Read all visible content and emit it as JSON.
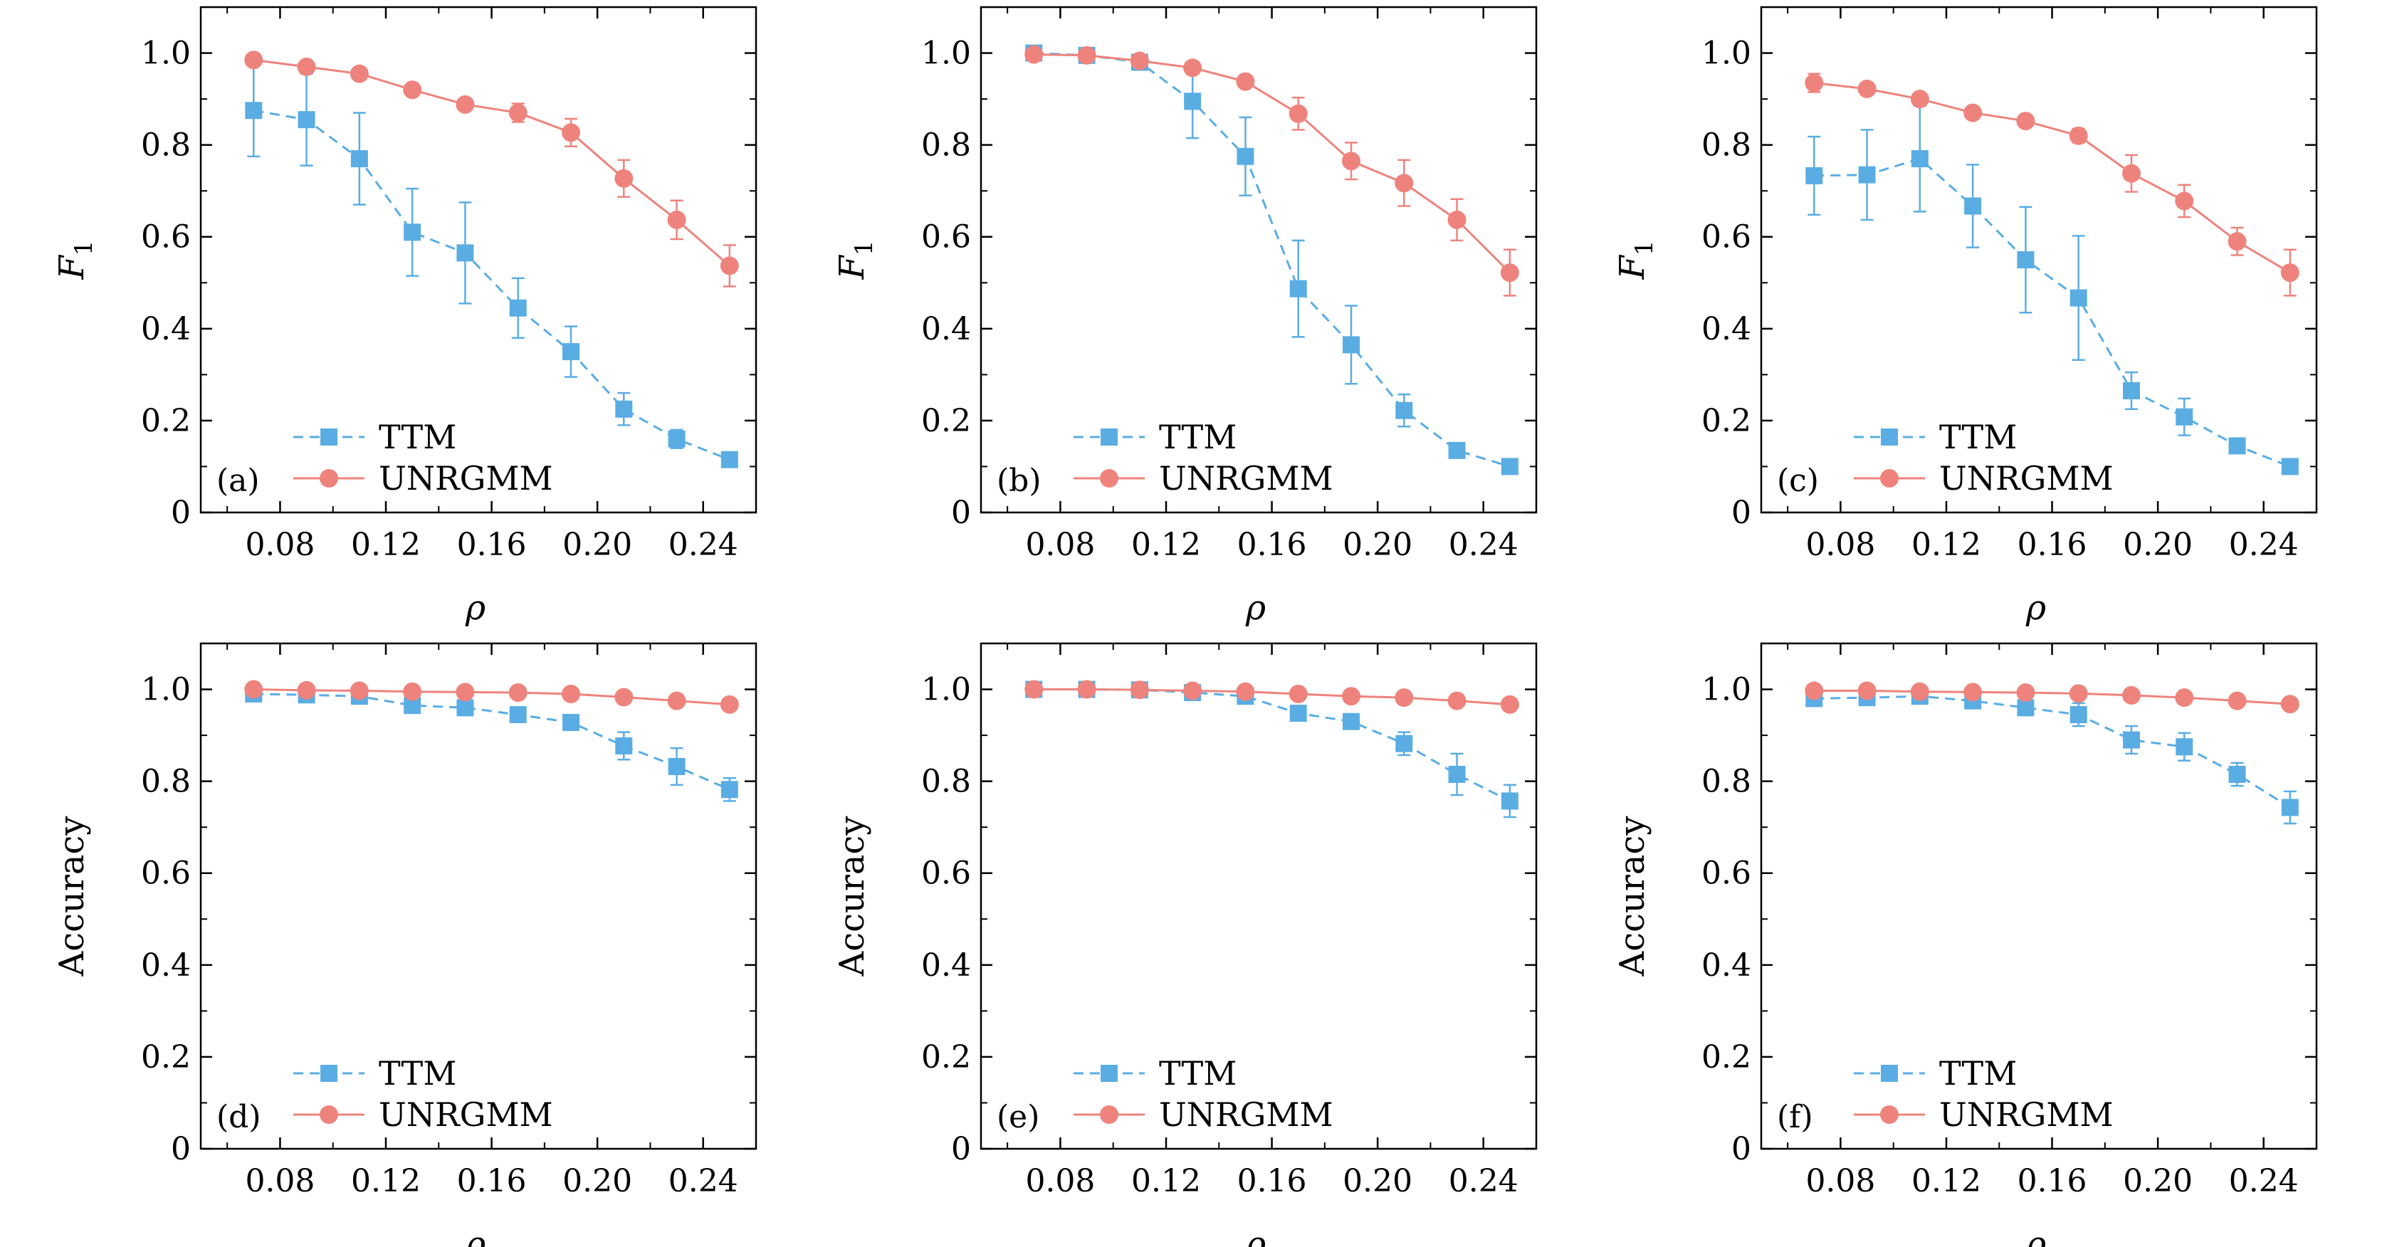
{
  "colors": {
    "ttm": "#5aade3",
    "unrgmm": "#ee837d",
    "axis": "#000000"
  },
  "chart_data": [
    {
      "type": "line",
      "panel_label": "(a)",
      "xlabel": "ρ",
      "ylabel": "F",
      "ylabel_sub": "1",
      "xlim": [
        0.05,
        0.26
      ],
      "ylim": [
        0,
        1.1
      ],
      "xticks": [
        "0.08",
        "0.12",
        "0.16",
        "0.20",
        "0.24"
      ],
      "yticks": [
        "0",
        "0.2",
        "0.4",
        "0.6",
        "0.8",
        "1.0"
      ],
      "x": [
        0.07,
        0.09,
        0.11,
        0.13,
        0.15,
        0.17,
        0.19,
        0.21,
        0.23,
        0.25
      ],
      "series": [
        {
          "name": "TTM",
          "marker": "square",
          "dashed": true,
          "values": [
            0.875,
            0.855,
            0.77,
            0.61,
            0.565,
            0.445,
            0.35,
            0.225,
            0.16,
            0.115
          ],
          "errors": [
            0.1,
            0.1,
            0.1,
            0.095,
            0.11,
            0.065,
            0.055,
            0.035,
            0.02,
            0.01
          ]
        },
        {
          "name": "UNRGMM",
          "marker": "circle",
          "dashed": false,
          "values": [
            0.985,
            0.97,
            0.955,
            0.92,
            0.888,
            0.87,
            0.827,
            0.727,
            0.637,
            0.537
          ],
          "errors": [
            0.01,
            0.01,
            0.01,
            0.01,
            0.01,
            0.02,
            0.03,
            0.04,
            0.042,
            0.045
          ]
        }
      ]
    },
    {
      "type": "line",
      "panel_label": "(b)",
      "xlabel": "ρ",
      "ylabel": "F",
      "ylabel_sub": "1",
      "xlim": [
        0.05,
        0.26
      ],
      "ylim": [
        0,
        1.1
      ],
      "xticks": [
        "0.08",
        "0.12",
        "0.16",
        "0.20",
        "0.24"
      ],
      "yticks": [
        "0",
        "0.2",
        "0.4",
        "0.6",
        "0.8",
        "1.0"
      ],
      "x": [
        0.07,
        0.09,
        0.11,
        0.13,
        0.15,
        0.17,
        0.19,
        0.21,
        0.23,
        0.25
      ],
      "series": [
        {
          "name": "TTM",
          "marker": "square",
          "dashed": true,
          "values": [
            1.0,
            0.995,
            0.98,
            0.895,
            0.775,
            0.487,
            0.365,
            0.222,
            0.135,
            0.1
          ],
          "errors": [
            0.005,
            0.005,
            0.01,
            0.08,
            0.085,
            0.105,
            0.085,
            0.035,
            0.008,
            0.008
          ]
        },
        {
          "name": "UNRGMM",
          "marker": "circle",
          "dashed": false,
          "values": [
            0.997,
            0.995,
            0.983,
            0.968,
            0.938,
            0.868,
            0.765,
            0.717,
            0.637,
            0.522
          ],
          "errors": [
            0.005,
            0.005,
            0.008,
            0.01,
            0.01,
            0.035,
            0.04,
            0.05,
            0.045,
            0.05
          ]
        }
      ]
    },
    {
      "type": "line",
      "panel_label": "(c)",
      "xlabel": "ρ",
      "ylabel": "F",
      "ylabel_sub": "1",
      "xlim": [
        0.05,
        0.26
      ],
      "ylim": [
        0,
        1.1
      ],
      "xticks": [
        "0.08",
        "0.12",
        "0.16",
        "0.20",
        "0.24"
      ],
      "yticks": [
        "0",
        "0.2",
        "0.4",
        "0.6",
        "0.8",
        "1.0"
      ],
      "x": [
        0.07,
        0.09,
        0.11,
        0.13,
        0.15,
        0.17,
        0.19,
        0.21,
        0.23,
        0.25
      ],
      "series": [
        {
          "name": "TTM",
          "marker": "square",
          "dashed": true,
          "values": [
            0.733,
            0.735,
            0.77,
            0.667,
            0.55,
            0.467,
            0.265,
            0.208,
            0.145,
            0.1
          ],
          "errors": [
            0.085,
            0.098,
            0.115,
            0.09,
            0.115,
            0.135,
            0.04,
            0.04,
            0.01,
            0.01
          ]
        },
        {
          "name": "UNRGMM",
          "marker": "circle",
          "dashed": false,
          "values": [
            0.935,
            0.922,
            0.9,
            0.87,
            0.852,
            0.82,
            0.738,
            0.678,
            0.59,
            0.522
          ],
          "errors": [
            0.02,
            0.01,
            0.01,
            0.01,
            0.01,
            0.015,
            0.04,
            0.035,
            0.03,
            0.05
          ]
        }
      ]
    },
    {
      "type": "line",
      "panel_label": "(d)",
      "xlabel": "ρ",
      "ylabel": "Accuracy",
      "ylabel_sub": "",
      "xlim": [
        0.05,
        0.26
      ],
      "ylim": [
        0,
        1.1
      ],
      "xticks": [
        "0.08",
        "0.12",
        "0.16",
        "0.20",
        "0.24"
      ],
      "yticks": [
        "0",
        "0.2",
        "0.4",
        "0.6",
        "0.8",
        "1.0"
      ],
      "x": [
        0.07,
        0.09,
        0.11,
        0.13,
        0.15,
        0.17,
        0.19,
        0.21,
        0.23,
        0.25
      ],
      "series": [
        {
          "name": "TTM",
          "marker": "square",
          "dashed": true,
          "values": [
            0.99,
            0.988,
            0.985,
            0.965,
            0.96,
            0.945,
            0.928,
            0.877,
            0.832,
            0.782
          ],
          "errors": [
            0.008,
            0.008,
            0.01,
            0.012,
            0.012,
            0.015,
            0.015,
            0.03,
            0.04,
            0.025
          ]
        },
        {
          "name": "UNRGMM",
          "marker": "circle",
          "dashed": false,
          "values": [
            1.0,
            0.998,
            0.997,
            0.995,
            0.994,
            0.993,
            0.99,
            0.983,
            0.975,
            0.967
          ],
          "errors": [
            0.003,
            0.003,
            0.003,
            0.003,
            0.003,
            0.003,
            0.004,
            0.005,
            0.006,
            0.006
          ]
        }
      ]
    },
    {
      "type": "line",
      "panel_label": "(e)",
      "xlabel": "ρ",
      "ylabel": "Accuracy",
      "ylabel_sub": "",
      "xlim": [
        0.05,
        0.26
      ],
      "ylim": [
        0,
        1.1
      ],
      "xticks": [
        "0.08",
        "0.12",
        "0.16",
        "0.20",
        "0.24"
      ],
      "yticks": [
        "0",
        "0.2",
        "0.4",
        "0.6",
        "0.8",
        "1.0"
      ],
      "x": [
        0.07,
        0.09,
        0.11,
        0.13,
        0.15,
        0.17,
        0.19,
        0.21,
        0.23,
        0.25
      ],
      "series": [
        {
          "name": "TTM",
          "marker": "square",
          "dashed": true,
          "values": [
            1.0,
            1.0,
            0.999,
            0.993,
            0.985,
            0.948,
            0.93,
            0.882,
            0.815,
            0.757
          ],
          "errors": [
            0.002,
            0.002,
            0.002,
            0.005,
            0.01,
            0.015,
            0.015,
            0.025,
            0.045,
            0.035
          ]
        },
        {
          "name": "UNRGMM",
          "marker": "circle",
          "dashed": false,
          "values": [
            1.0,
            1.0,
            0.999,
            0.997,
            0.995,
            0.99,
            0.985,
            0.982,
            0.975,
            0.967
          ],
          "errors": [
            0.002,
            0.002,
            0.002,
            0.003,
            0.003,
            0.003,
            0.004,
            0.004,
            0.005,
            0.006
          ]
        }
      ]
    },
    {
      "type": "line",
      "panel_label": "(f)",
      "xlabel": "ρ",
      "ylabel": "Accuracy",
      "ylabel_sub": "",
      "xlim": [
        0.05,
        0.26
      ],
      "ylim": [
        0,
        1.1
      ],
      "xticks": [
        "0.08",
        "0.12",
        "0.16",
        "0.20",
        "0.24"
      ],
      "yticks": [
        "0",
        "0.2",
        "0.4",
        "0.6",
        "0.8",
        "1.0"
      ],
      "x": [
        0.07,
        0.09,
        0.11,
        0.13,
        0.15,
        0.17,
        0.19,
        0.21,
        0.23,
        0.25
      ],
      "series": [
        {
          "name": "TTM",
          "marker": "square",
          "dashed": true,
          "values": [
            0.98,
            0.982,
            0.985,
            0.975,
            0.96,
            0.945,
            0.89,
            0.875,
            0.815,
            0.743
          ],
          "errors": [
            0.008,
            0.008,
            0.01,
            0.012,
            0.015,
            0.025,
            0.03,
            0.03,
            0.025,
            0.035
          ]
        },
        {
          "name": "UNRGMM",
          "marker": "circle",
          "dashed": false,
          "values": [
            0.997,
            0.997,
            0.995,
            0.994,
            0.993,
            0.991,
            0.987,
            0.982,
            0.975,
            0.968
          ],
          "errors": [
            0.003,
            0.003,
            0.003,
            0.003,
            0.003,
            0.003,
            0.004,
            0.005,
            0.006,
            0.006
          ]
        }
      ]
    }
  ]
}
